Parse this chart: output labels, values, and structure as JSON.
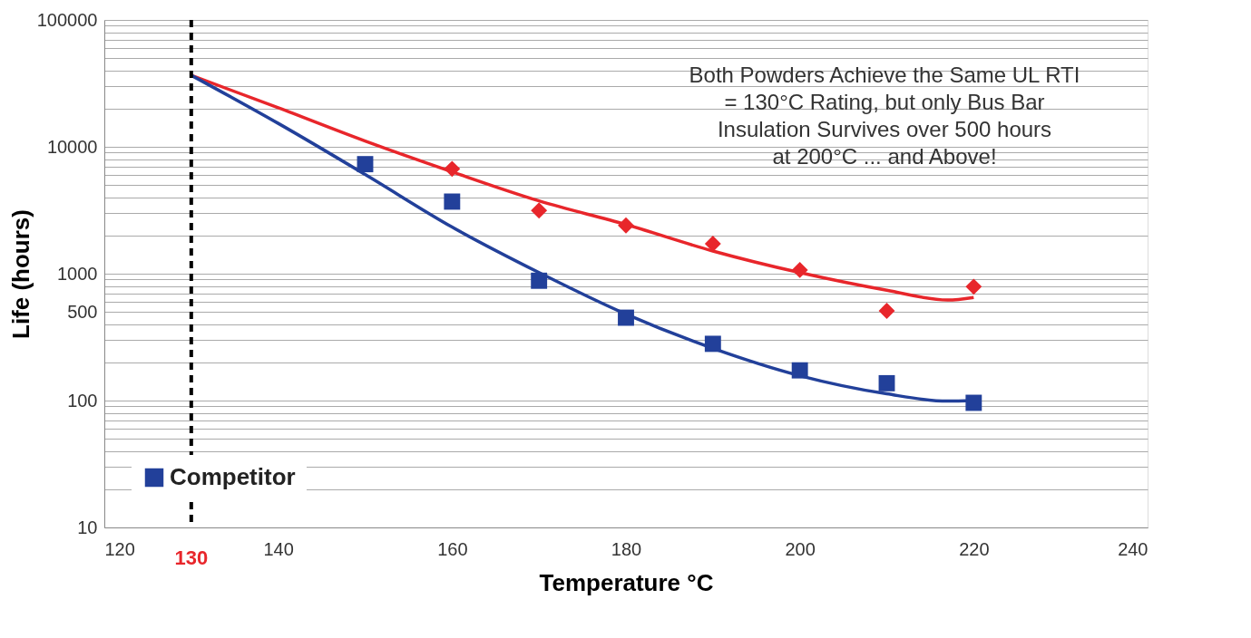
{
  "chart_data": {
    "type": "scatter",
    "xlabel": "Temperature °C",
    "ylabel": "Life (hours)",
    "xlim": [
      120,
      240
    ],
    "xticks": [
      120,
      140,
      160,
      180,
      200,
      220,
      240
    ],
    "ylim": [
      10,
      100000
    ],
    "log": "y",
    "grid": "y",
    "yticks": [
      10,
      {
        "value": 20,
        "label": null
      },
      {
        "value": 30,
        "label": null
      },
      {
        "value": 40,
        "label": null
      },
      {
        "value": 50,
        "label": null
      },
      {
        "value": 60,
        "label": null
      },
      {
        "value": 70,
        "label": null
      },
      {
        "value": 80,
        "label": null
      },
      {
        "value": 90,
        "label": null
      },
      100,
      {
        "value": 200,
        "label": null
      },
      {
        "value": 300,
        "label": null
      },
      {
        "value": 400,
        "label": null
      },
      500,
      {
        "value": 600,
        "label": null
      },
      {
        "value": 700,
        "label": null
      },
      {
        "value": 800,
        "label": null
      },
      {
        "value": 900,
        "label": null
      },
      1000,
      {
        "value": 2000,
        "label": null
      },
      {
        "value": 3000,
        "label": null
      },
      {
        "value": 4000,
        "label": null
      },
      {
        "value": 5000,
        "label": null
      },
      {
        "value": 6000,
        "label": null
      },
      {
        "value": 7000,
        "label": null
      },
      {
        "value": 8000,
        "label": null
      },
      {
        "value": 9000,
        "label": null
      },
      10000,
      {
        "value": 20000,
        "label": null
      },
      {
        "value": 30000,
        "label": null
      },
      {
        "value": 40000,
        "label": null
      },
      {
        "value": 50000,
        "label": null
      },
      {
        "value": 60000,
        "label": null
      },
      {
        "value": 70000,
        "label": null
      },
      {
        "value": 80000,
        "label": null
      },
      {
        "value": 90000,
        "label": null
      },
      100000
    ],
    "legend": "bottom left",
    "ref_lines": [
      {
        "axis": "x",
        "value": 130,
        "label": "130",
        "color": "#000000",
        "line_style": "dashed"
      }
    ],
    "annotations": [
      "Both Powders Achieve the Same UL RTI = 130°C Rating, but only Bus Bar Insulation Survives over 500 hours at 200°C ... and Above!"
    ],
    "series": [
      {
        "marker": "diamond",
        "color": "#e8262b",
        "x": [
          160,
          170,
          180,
          190,
          200,
          210,
          220
        ],
        "values": [
          6700,
          3150,
          2400,
          1720,
          1070,
          510,
          790
        ]
      },
      {
        "name": "Competitor",
        "marker": "square",
        "color": "#22409a",
        "x": [
          150,
          160,
          170,
          180,
          190,
          200,
          210,
          220
        ],
        "values": [
          7300,
          3700,
          880,
          450,
          280,
          173,
          137,
          96
        ]
      },
      {
        "type": "line",
        "color": "#e8262b",
        "x": [
          130,
          140,
          150,
          160,
          170,
          180,
          190,
          200,
          210,
          217,
          220
        ],
        "values": [
          36600,
          20300,
          11100,
          6350,
          3750,
          2440,
          1510,
          1020,
          740,
          620,
          650
        ]
      },
      {
        "type": "line",
        "color": "#22409a",
        "x": [
          130,
          140,
          150,
          160,
          170,
          180,
          190,
          200,
          210,
          217,
          220
        ],
        "values": [
          36600,
          15300,
          6050,
          2330,
          1020,
          480,
          258,
          157,
          113,
          99,
          100
        ]
      }
    ]
  }
}
